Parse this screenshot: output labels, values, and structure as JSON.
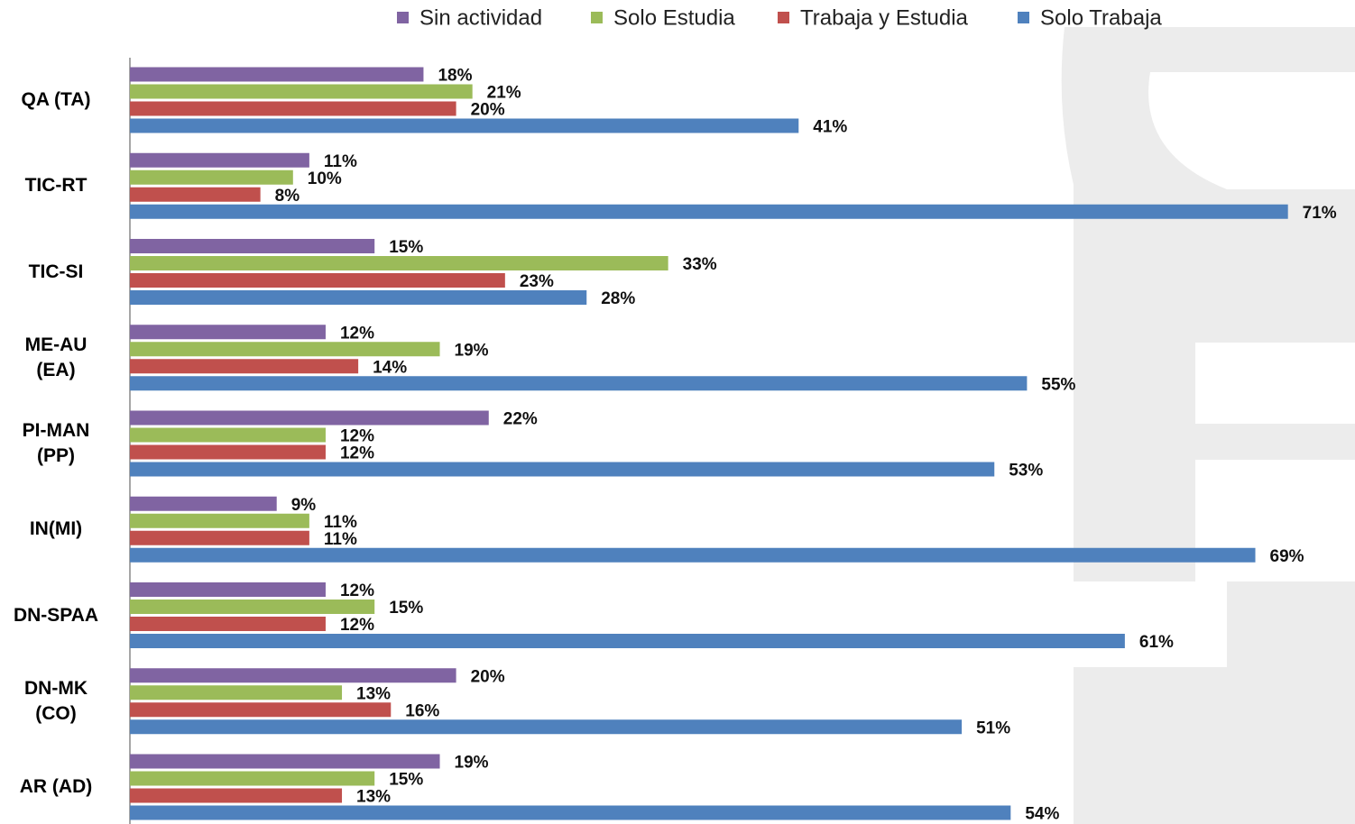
{
  "chart_data": {
    "type": "hbar",
    "categories": [
      "QA  (TA)",
      "TIC-RT",
      "TIC-SI",
      "ME-AU\n(EA)",
      "PI-MAN\n(PP)",
      "IN(MI)",
      "DN-SPAA",
      "DN-MK\n(CO)",
      "AR (AD)"
    ],
    "series": [
      {
        "name": "Sin actividad",
        "color": "#8064a2",
        "values": [
          18,
          11,
          15,
          12,
          22,
          9,
          12,
          20,
          19
        ],
        "value_labels": [
          "18%",
          "11%",
          "15%",
          "12%",
          "22%",
          "9%",
          "12%",
          "20%",
          "19%"
        ]
      },
      {
        "name": "Solo Estudia",
        "color": "#9bbb59",
        "values": [
          21,
          10,
          33,
          19,
          12,
          11,
          15,
          13,
          15
        ],
        "value_labels": [
          "21%",
          "10%",
          "33%",
          "19%",
          "12%",
          "11%",
          "15%",
          "13%",
          "15%"
        ]
      },
      {
        "name": "Trabaja y Estudia",
        "color": "#c0504d",
        "values": [
          20,
          8,
          23,
          14,
          12,
          11,
          12,
          16,
          13
        ],
        "value_labels": [
          "20%",
          "8%",
          "23%",
          "14%",
          "12%",
          "11%",
          "12%",
          "16%",
          "13%"
        ]
      },
      {
        "name": "Solo Trabaja",
        "color": "#4f81bd",
        "values": [
          41,
          71,
          28,
          55,
          53,
          69,
          61,
          51,
          54
        ],
        "value_labels": [
          "41%",
          "71%",
          "28%",
          "55%",
          "53%",
          "69%",
          "61%",
          "51%",
          "54%"
        ]
      }
    ],
    "xlim": [
      0,
      75
    ],
    "legend": "top"
  }
}
